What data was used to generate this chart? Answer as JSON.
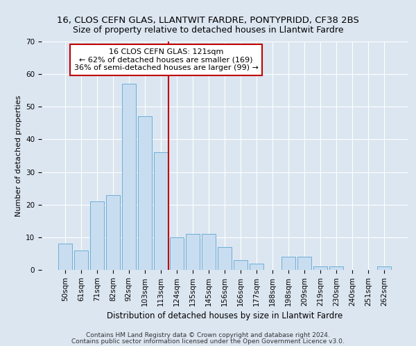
{
  "title1": "16, CLOS CEFN GLAS, LLANTWIT FARDRE, PONTYPRIDD, CF38 2BS",
  "title2": "Size of property relative to detached houses in Llantwit Fardre",
  "xlabel": "Distribution of detached houses by size in Llantwit Fardre",
  "ylabel": "Number of detached properties",
  "categories": [
    "50sqm",
    "61sqm",
    "71sqm",
    "82sqm",
    "92sqm",
    "103sqm",
    "113sqm",
    "124sqm",
    "135sqm",
    "145sqm",
    "156sqm",
    "166sqm",
    "177sqm",
    "188sqm",
    "198sqm",
    "209sqm",
    "219sqm",
    "230sqm",
    "240sqm",
    "251sqm",
    "262sqm"
  ],
  "values": [
    8,
    6,
    21,
    23,
    57,
    47,
    36,
    10,
    11,
    11,
    7,
    3,
    2,
    0,
    4,
    4,
    1,
    1,
    0,
    0,
    1
  ],
  "bar_color": "#c9ddf0",
  "bar_edge_color": "#6aaed6",
  "vline_x_index": 6.5,
  "vline_color": "#c00000",
  "annotation_text": "16 CLOS CEFN GLAS: 121sqm\n← 62% of detached houses are smaller (169)\n36% of semi-detached houses are larger (99) →",
  "annotation_box_color": "#ffffff",
  "annotation_box_edge_color": "#c00000",
  "ylim": [
    0,
    70
  ],
  "yticks": [
    0,
    10,
    20,
    30,
    40,
    50,
    60,
    70
  ],
  "background_color": "#dce6f1",
  "plot_bg_color": "#dce6f1",
  "footer_line1": "Contains HM Land Registry data © Crown copyright and database right 2024.",
  "footer_line2": "Contains public sector information licensed under the Open Government Licence v3.0.",
  "title1_fontsize": 9.5,
  "title2_fontsize": 9,
  "xlabel_fontsize": 8.5,
  "ylabel_fontsize": 8,
  "tick_fontsize": 7.5,
  "annotation_fontsize": 8,
  "footer_fontsize": 6.5
}
